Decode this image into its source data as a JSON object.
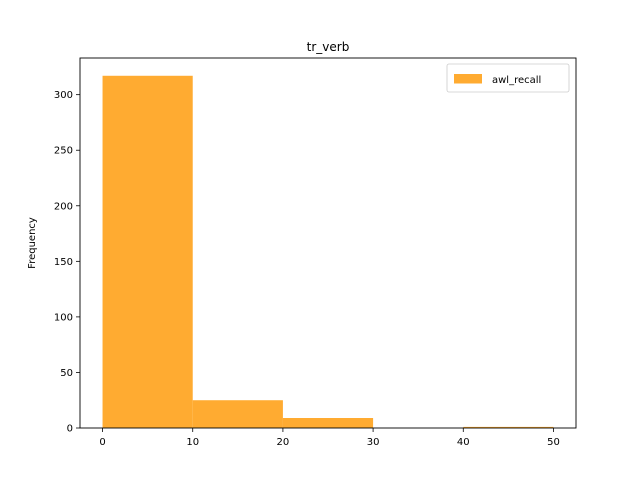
{
  "chart_data": {
    "type": "bar",
    "title": "tr_verb",
    "xlabel": "",
    "ylabel": "Frequency",
    "bin_edges": [
      0,
      10,
      20,
      30,
      40,
      50
    ],
    "series": [
      {
        "name": "awl_recall",
        "color": "#ffa726",
        "values": [
          317,
          25,
          9,
          0,
          1
        ]
      }
    ],
    "xlim": [
      -2.5,
      52.5
    ],
    "ylim": [
      0,
      333
    ],
    "xticks": [
      0,
      10,
      20,
      30,
      40,
      50
    ],
    "yticks": [
      0,
      50,
      100,
      150,
      200,
      250,
      300
    ],
    "grid": false,
    "legend_position": "top-right"
  }
}
